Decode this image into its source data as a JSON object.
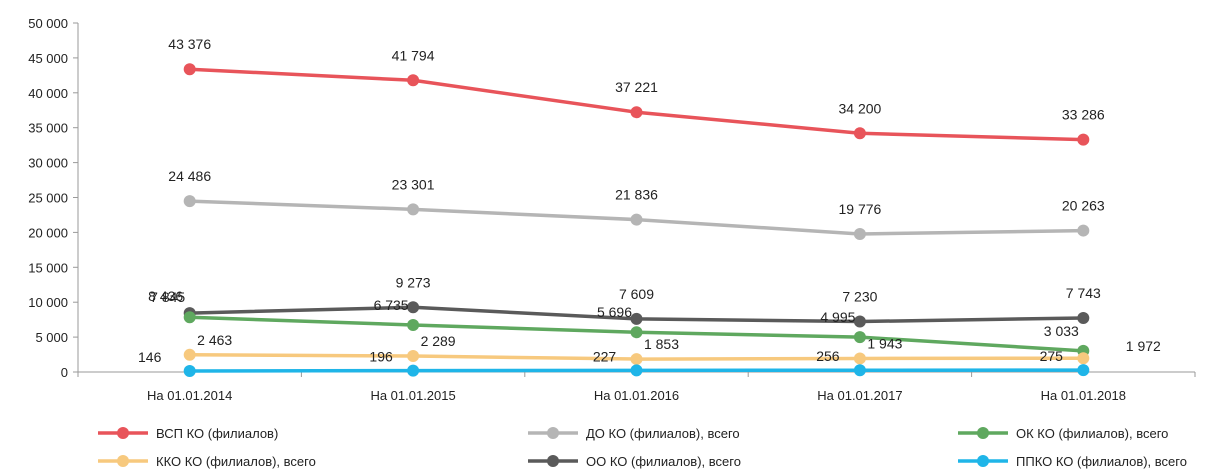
{
  "chart_data": {
    "type": "line",
    "categories": [
      "На 01.01.2014",
      "На 01.01.2015",
      "На 01.01.2016",
      "На 01.01.2017",
      "На 01.01.2018"
    ],
    "ylim": [
      0,
      50000
    ],
    "yticks": [
      0,
      5000,
      10000,
      15000,
      20000,
      25000,
      30000,
      35000,
      40000,
      45000,
      50000
    ],
    "ytick_labels": [
      "0",
      "5 000",
      "10 000",
      "15 000",
      "20 000",
      "25 000",
      "30 000",
      "35 000",
      "40 000",
      "45 000",
      "50 000"
    ],
    "grid": false,
    "legend_position": "bottom",
    "series": [
      {
        "name": "ВСП КО (филиалов)",
        "color": "#E8545A",
        "values": [
          43376,
          41794,
          37221,
          34200,
          33286
        ],
        "labels": [
          "43 376",
          "41 794",
          "37 221",
          "34 200",
          "33 286"
        ]
      },
      {
        "name": "ДО КО (филиалов), всего",
        "color": "#B5B5B5",
        "values": [
          24486,
          23301,
          21836,
          19776,
          20263
        ],
        "labels": [
          "24 486",
          "23 301",
          "21 836",
          "19 776",
          "20 263"
        ]
      },
      {
        "name": "ОК КО (филиалов), всего",
        "color": "#5FA85F",
        "values": [
          7845,
          6735,
          5696,
          4995,
          3033
        ],
        "labels": [
          "7 845",
          "6 735",
          "5 696",
          "4 995",
          "3 033"
        ]
      },
      {
        "name": "ККО КО (филиалов), всего",
        "color": "#F7C97E",
        "values": [
          2463,
          2289,
          1853,
          1943,
          1972
        ],
        "labels": [
          "2 463",
          "2 289",
          "1 853",
          "1 943",
          "1 972"
        ]
      },
      {
        "name": "ОО КО (филиалов), всего",
        "color": "#5A5A5A",
        "values": [
          8436,
          9273,
          7609,
          7230,
          7743
        ],
        "labels": [
          "8 436",
          "9 273",
          "7 609",
          "7 230",
          "7 743"
        ]
      },
      {
        "name": "ППКО КО (филиалов), всего",
        "color": "#1FB5E8",
        "values": [
          146,
          196,
          227,
          256,
          275
        ],
        "labels": [
          "146",
          "196",
          "227",
          "256",
          "275"
        ]
      }
    ]
  }
}
